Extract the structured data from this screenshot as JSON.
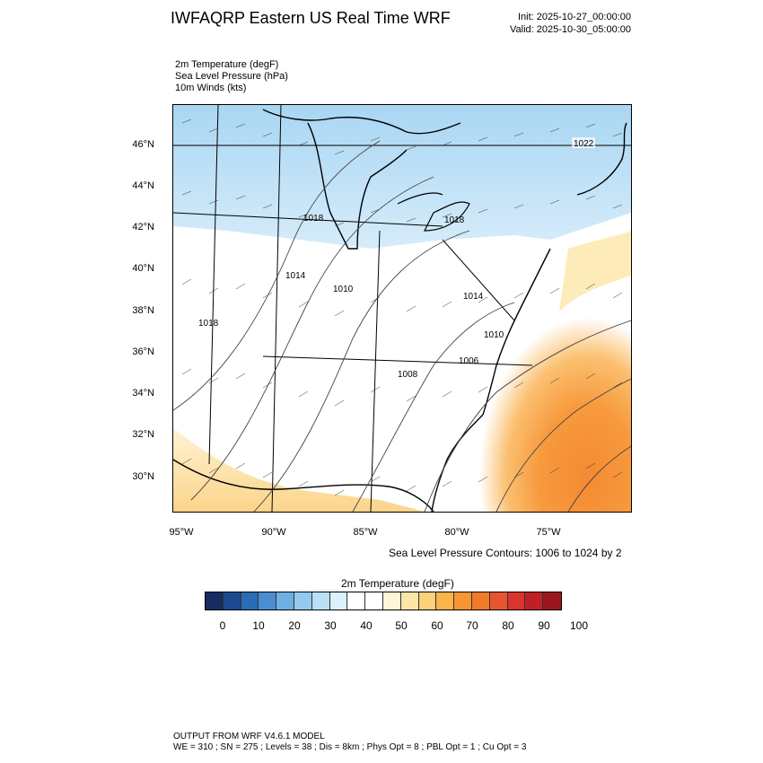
{
  "header": {
    "title": "IWFAQRP Eastern US Real Time WRF",
    "init": "Init: 2025-10-27_00:00:00",
    "valid": "Valid: 2025-10-30_05:00:00"
  },
  "variables": [
    "2m Temperature   (degF)",
    "Sea Level Pressure   (hPa)",
    "10m Winds   (kts)"
  ],
  "map": {
    "lat_labels": [
      "46°N",
      "44°N",
      "42°N",
      "40°N",
      "38°N",
      "36°N",
      "34°N",
      "32°N",
      "30°N"
    ],
    "lon_labels": [
      "95°W",
      "90°W",
      "85°W",
      "80°W",
      "75°W"
    ],
    "isobar_labels": [
      "1022",
      "1018",
      "1018",
      "1014",
      "1010",
      "1014",
      "1018",
      "1010",
      "1008",
      "1006"
    ],
    "slp_note": "Sea Level Pressure Contours: 1006 to 1024 by 2"
  },
  "colorbar": {
    "title": "2m Temperature  (degF)",
    "ticks": [
      "0",
      "10",
      "20",
      "30",
      "40",
      "50",
      "60",
      "70",
      "80",
      "90",
      "100"
    ],
    "colors": [
      "#162d63",
      "#1d4a8f",
      "#2a6cb6",
      "#4a8ed0",
      "#6eb0e3",
      "#93cbf0",
      "#b8e0f7",
      "#dcf1fb",
      "#ffffff",
      "#ffffff",
      "#fff5d9",
      "#fde6a8",
      "#fdd07a",
      "#fbb34c",
      "#f89535",
      "#f27a2b",
      "#e65530",
      "#d8352e",
      "#c01f27",
      "#9b161e"
    ]
  },
  "footer": {
    "line1": "OUTPUT FROM WRF V4.6.1 MODEL",
    "line2": "WE = 310 ; SN = 275 ; Levels = 38 ; Dis = 8km ; Phys Opt = 8 ; PBL Opt = 1 ; Cu Opt = 3"
  }
}
